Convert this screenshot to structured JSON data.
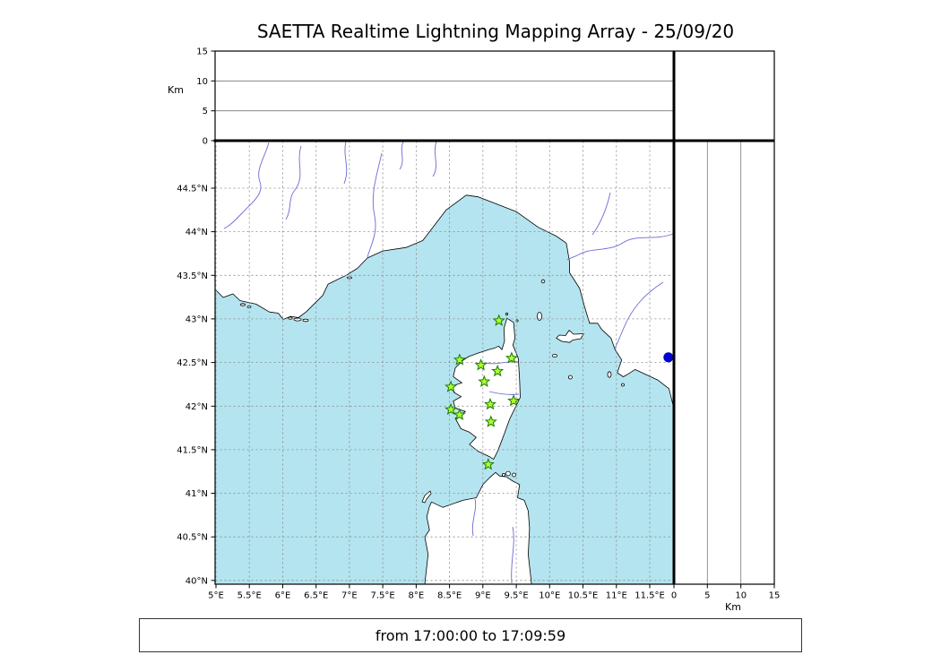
{
  "title": "SAETTA Realtime Lightning Mapping Array - 25/09/20",
  "status": {
    "text": "from 17:00:00 to 17:09:59"
  },
  "panels": {
    "altitude_time": {
      "axis_label": "Km",
      "ticks": [
        "15",
        "10",
        "5",
        "0"
      ]
    },
    "altitude_lat": {
      "axis_label": "Km",
      "ticks": [
        "0",
        "5",
        "10",
        "15"
      ]
    }
  },
  "map": {
    "lon_ticks": [
      "5°E",
      "5.5°E",
      "6°E",
      "6.5°E",
      "7°E",
      "7.5°E",
      "8°E",
      "8.5°E",
      "9°E",
      "9.5°E",
      "10°E",
      "10.5°E",
      "11°E",
      "11.5°E"
    ],
    "lat_ticks": [
      "44.5°N",
      "44°N",
      "43.5°N",
      "43°N",
      "42.5°N",
      "42°N",
      "41.5°N",
      "41°N",
      "40.5°N",
      "40°N"
    ],
    "colors": {
      "sea": "#b4e4ef",
      "land": "#ffffff",
      "coast": "#000000",
      "river": "#6a6ad8",
      "grid": "#8a8a8a",
      "station_fill": "#adff2f",
      "station_edge": "#1a7a00",
      "event": "#0000d0"
    },
    "stations": [
      {
        "lon": 9.24,
        "lat": 42.98
      },
      {
        "lon": 8.65,
        "lat": 42.53
      },
      {
        "lon": 8.97,
        "lat": 42.47
      },
      {
        "lon": 9.43,
        "lat": 42.55
      },
      {
        "lon": 9.22,
        "lat": 42.4
      },
      {
        "lon": 9.02,
        "lat": 42.28
      },
      {
        "lon": 8.52,
        "lat": 42.22
      },
      {
        "lon": 9.46,
        "lat": 42.06
      },
      {
        "lon": 8.52,
        "lat": 41.96
      },
      {
        "lon": 8.65,
        "lat": 41.9
      },
      {
        "lon": 9.11,
        "lat": 42.02
      },
      {
        "lon": 9.12,
        "lat": 41.82
      },
      {
        "lon": 9.08,
        "lat": 41.33
      }
    ],
    "events": [
      {
        "lon": 11.78,
        "lat": 42.56
      }
    ]
  }
}
